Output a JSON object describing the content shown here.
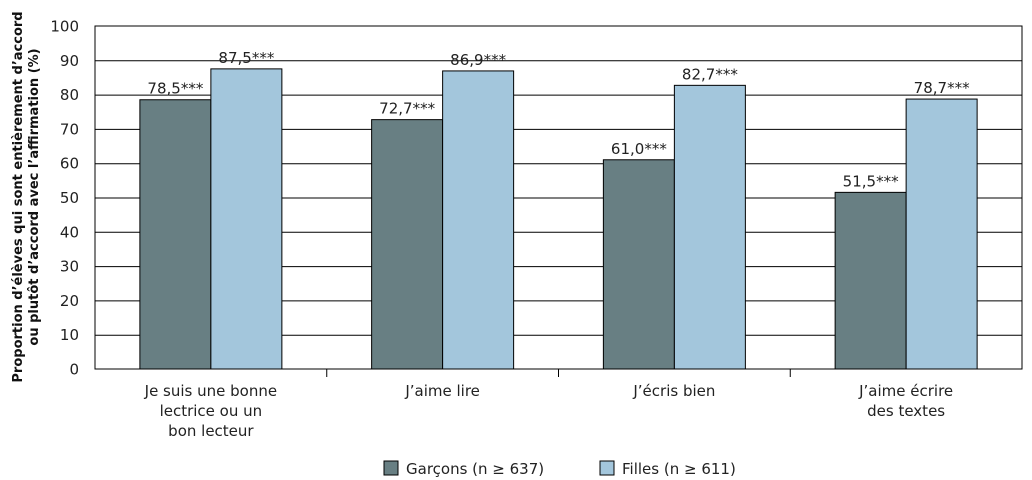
{
  "chart_data": {
    "type": "bar",
    "categories": [
      [
        "Je suis une bonne",
        "lectrice ou un",
        "bon lecteur"
      ],
      [
        "J’aime lire"
      ],
      [
        "J’écris bien"
      ],
      [
        "J’aime écrire",
        "des textes"
      ]
    ],
    "series": [
      {
        "name": "Garçons (n ≥ 637)",
        "color": "#687f83",
        "values": [
          78.5,
          72.7,
          61.0,
          51.5
        ],
        "labels": [
          "78,5***",
          "72,7***",
          "61,0***",
          "51,5***"
        ]
      },
      {
        "name": "Filles (n ≥ 611)",
        "color": "#a3c6dc",
        "values": [
          87.5,
          86.9,
          82.7,
          78.7
        ],
        "labels": [
          "87,5***",
          "86,9***",
          "82,7***",
          "78,7***"
        ]
      }
    ],
    "ylabel_lines": [
      "Proportion d’élèves qui sont entièrement d’accord",
      "ou plutôt d’accord avec l’affirmation (%)"
    ],
    "ylim": [
      0,
      100
    ],
    "yticks": [
      "0",
      "10",
      "20",
      "30",
      "40",
      "50",
      "60",
      "70",
      "80",
      "90",
      "100"
    ],
    "grid": true,
    "legend_position": "bottom-center"
  }
}
